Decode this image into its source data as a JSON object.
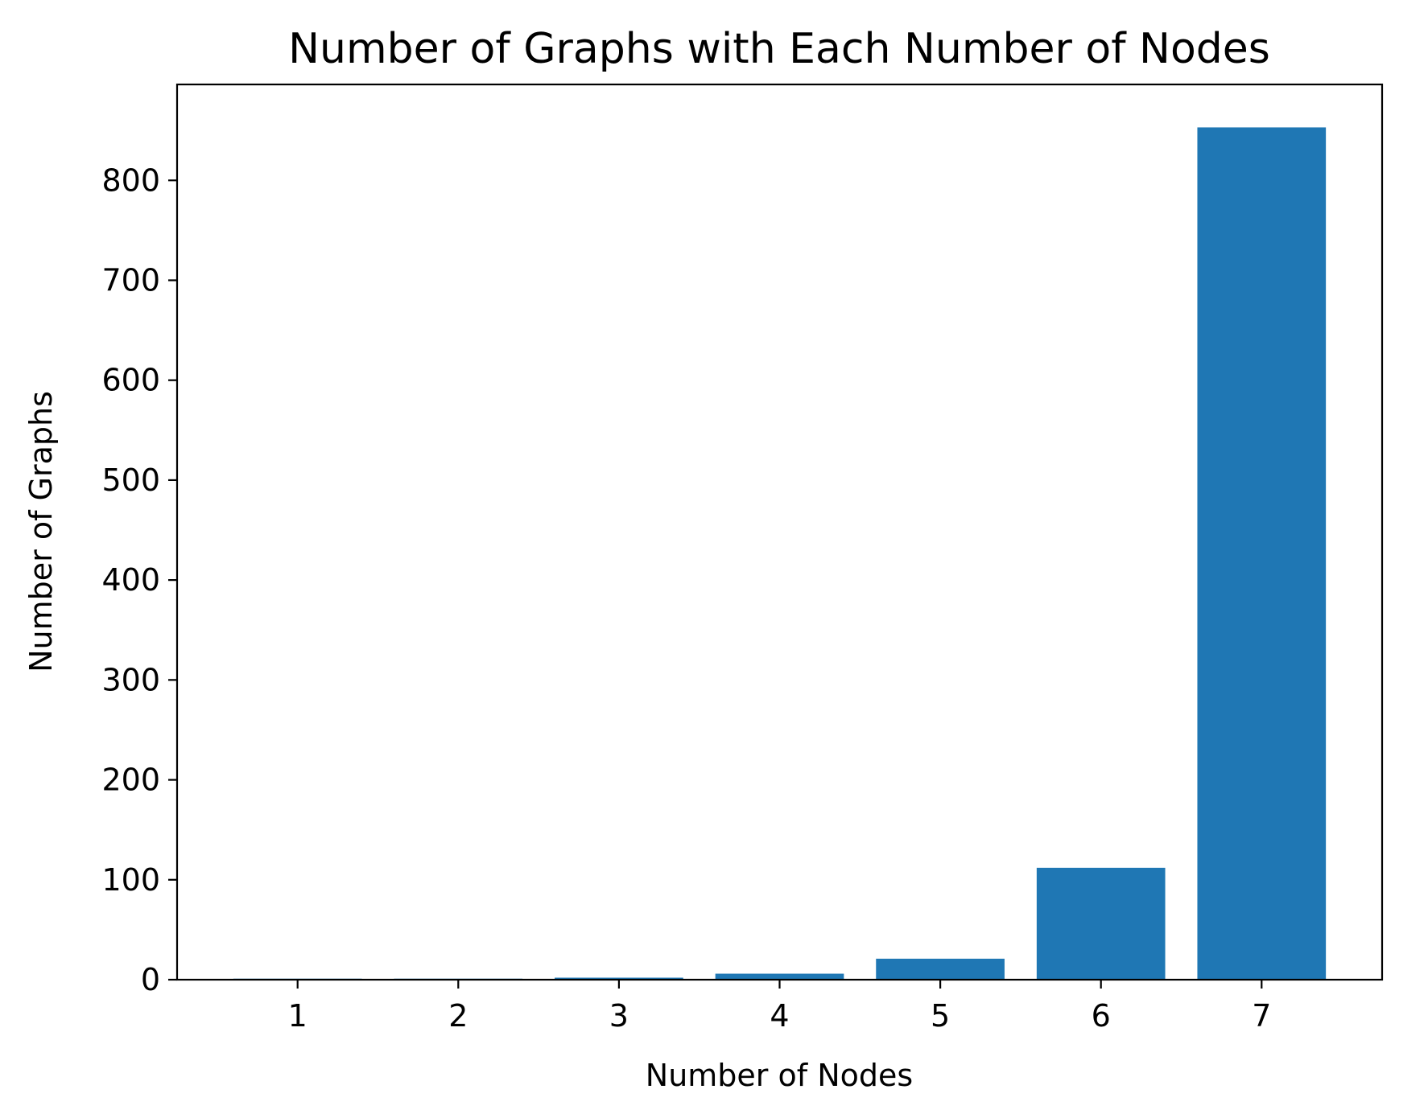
{
  "chart_data": {
    "type": "bar",
    "title": "Number of Graphs with Each Number of Nodes",
    "xlabel": "Number of Nodes",
    "ylabel": "Number of Graphs",
    "categories": [
      "1",
      "2",
      "3",
      "4",
      "5",
      "6",
      "7"
    ],
    "values": [
      1,
      1,
      2,
      6,
      21,
      112,
      853
    ],
    "ylim": [
      0,
      896
    ],
    "yticks": [
      0,
      100,
      200,
      300,
      400,
      500,
      600,
      700,
      800
    ],
    "ytick_labels": [
      "0",
      "100",
      "200",
      "300",
      "400",
      "500",
      "600",
      "700",
      "800"
    ],
    "grid": false,
    "bar_color": "#1f77b4"
  }
}
